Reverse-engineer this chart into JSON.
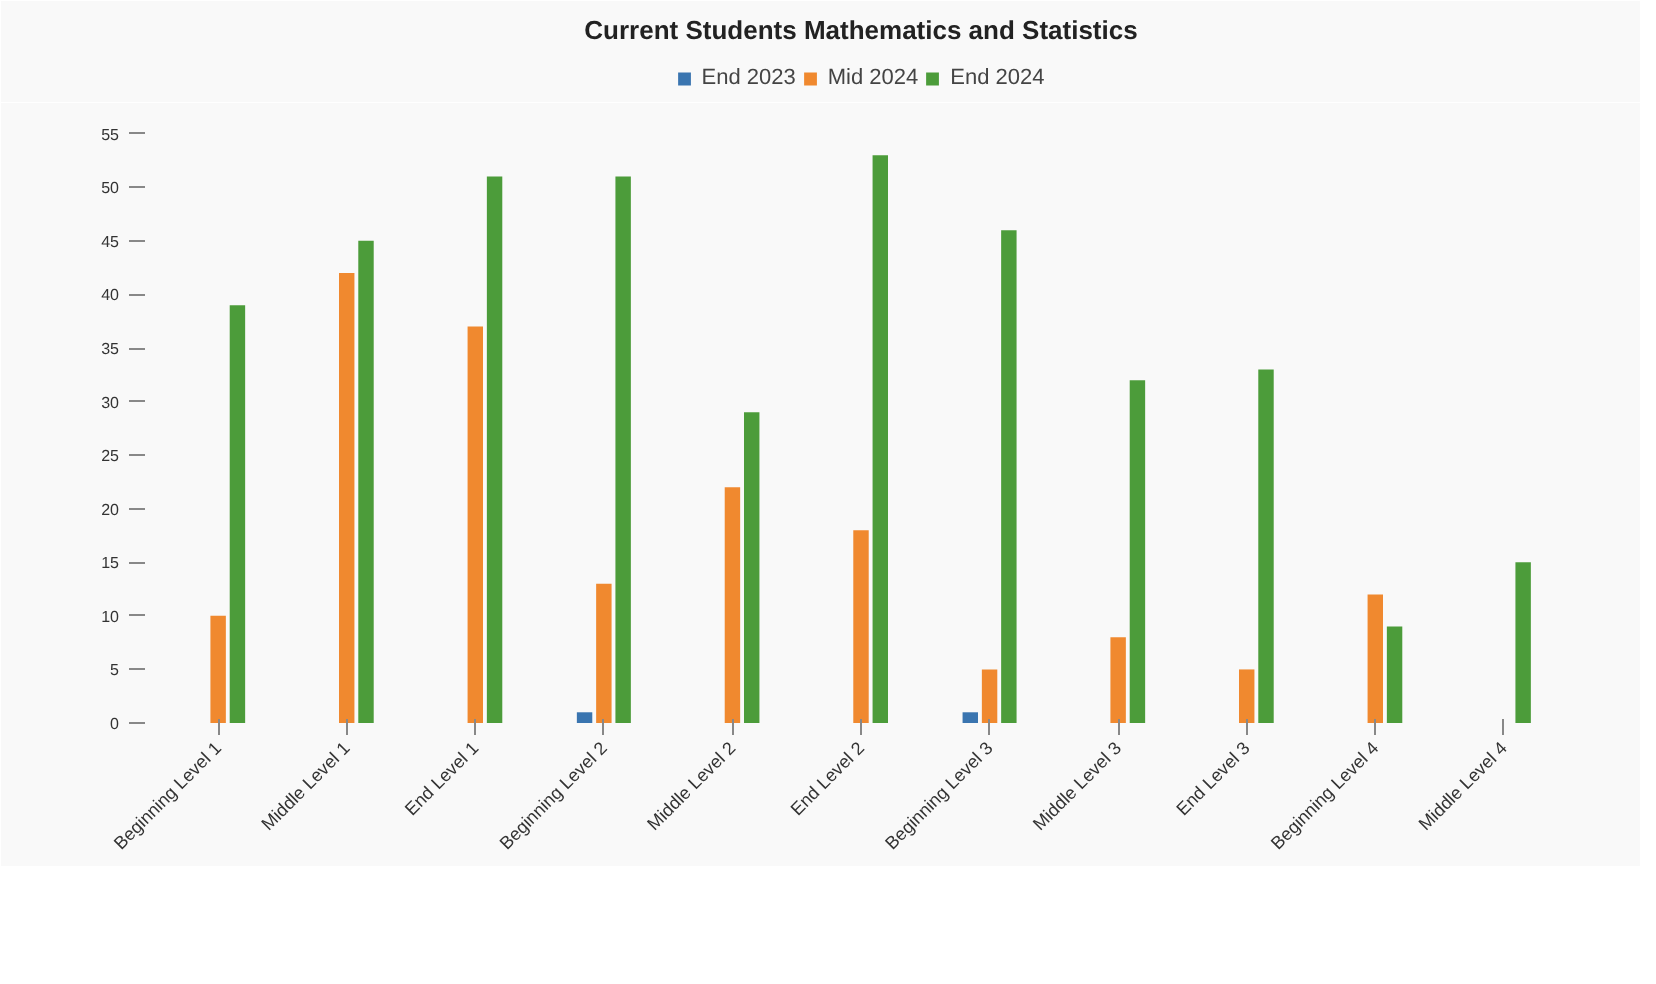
{
  "chart_data": {
    "type": "bar",
    "title": "Current Students Mathematics and Statistics",
    "categories": [
      "Beginning Level 1",
      "Middle Level 1",
      "End Level 1",
      "Beginning Level 2",
      "Middle Level 2",
      "End Level 2",
      "Beginning Level 3",
      "Middle Level 3",
      "End Level 3",
      "Beginning Level 4",
      "Middle Level 4"
    ],
    "series": [
      {
        "name": "End 2023",
        "color": "#3a75b0",
        "values": [
          null,
          null,
          null,
          1,
          null,
          null,
          1,
          null,
          null,
          null,
          null
        ]
      },
      {
        "name": "Mid 2024",
        "color": "#f0892f",
        "values": [
          10,
          42,
          37,
          13,
          22,
          18,
          5,
          8,
          5,
          12,
          null
        ]
      },
      {
        "name": "End 2024",
        "color": "#4c9c3a",
        "values": [
          39,
          45,
          51,
          51,
          29,
          53,
          46,
          32,
          33,
          9,
          15
        ]
      }
    ],
    "ylim": [
      0,
      56
    ],
    "yticks": [
      0,
      5,
      10,
      15,
      20,
      25,
      30,
      35,
      40,
      45,
      50,
      55
    ],
    "grid": false,
    "legend": "top"
  }
}
